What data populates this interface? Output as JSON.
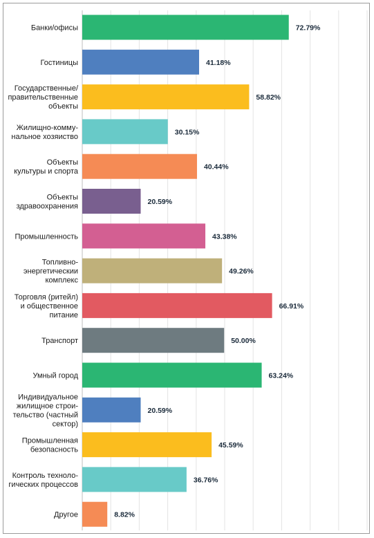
{
  "chart_data": {
    "type": "bar",
    "orientation": "horizontal",
    "title": "",
    "xlabel": "",
    "ylabel": "",
    "xlim": [
      0,
      100
    ],
    "grid": true,
    "categories": [
      "Банки/офисы",
      "Гостиницы",
      "Государственные/ правительственные объекты",
      "Жилищно-комму- нальное хозяиство",
      "Объекты культуры и спорта",
      "Объекты здравоохранения",
      "Промышленность",
      "Топливно- энергетическии комплекс",
      "Торговля (ритейл) и общественное питание",
      "Транспорт",
      "Умный город",
      "Индивидуальное жилищное строи- тельство (частный сектор)",
      "Промышленная безопасность",
      "Контроль техноло- гических процессов",
      "Другое"
    ],
    "category_lines": [
      [
        "Банки/офисы"
      ],
      [
        "Гостиницы"
      ],
      [
        "Государственные/",
        "правительственные",
        "объекты"
      ],
      [
        "Жилищно-комму-",
        "нальное хозяиство"
      ],
      [
        "Объекты",
        "культуры и спорта"
      ],
      [
        "Объекты",
        "здравоохранения"
      ],
      [
        "Промышленность"
      ],
      [
        "Топливно-",
        "энергетическии",
        "комплекс"
      ],
      [
        "Торговля (ритейл)",
        "и общественное",
        "питание"
      ],
      [
        "Транспорт"
      ],
      [
        "Умный город"
      ],
      [
        "Индивидуальное",
        "жилищное строи-",
        "тельство (частный",
        "сектор)"
      ],
      [
        "Промышленная",
        "безопасность"
      ],
      [
        "Контроль техноло-",
        "гических процессов"
      ],
      [
        "Другое"
      ]
    ],
    "values": [
      72.79,
      41.18,
      58.82,
      30.15,
      40.44,
      20.59,
      43.38,
      49.26,
      66.91,
      50.0,
      63.24,
      20.59,
      45.59,
      36.76,
      8.82
    ],
    "value_labels": [
      "72.79%",
      "41.18%",
      "58.82%",
      "30.15%",
      "40.44%",
      "20.59%",
      "43.38%",
      "49.26%",
      "66.91%",
      "50.00%",
      "63.24%",
      "20.59%",
      "45.59%",
      "36.76%",
      "8.82%"
    ],
    "colors": [
      "#2bb673",
      "#4f7fbf",
      "#fbbd1e",
      "#68cac8",
      "#f58b55",
      "#795f8f",
      "#d35f92",
      "#bfb07a",
      "#e25a61",
      "#6e7b80",
      "#2bb673",
      "#4f7fbf",
      "#fbbd1e",
      "#68cac8",
      "#f58b55"
    ]
  }
}
